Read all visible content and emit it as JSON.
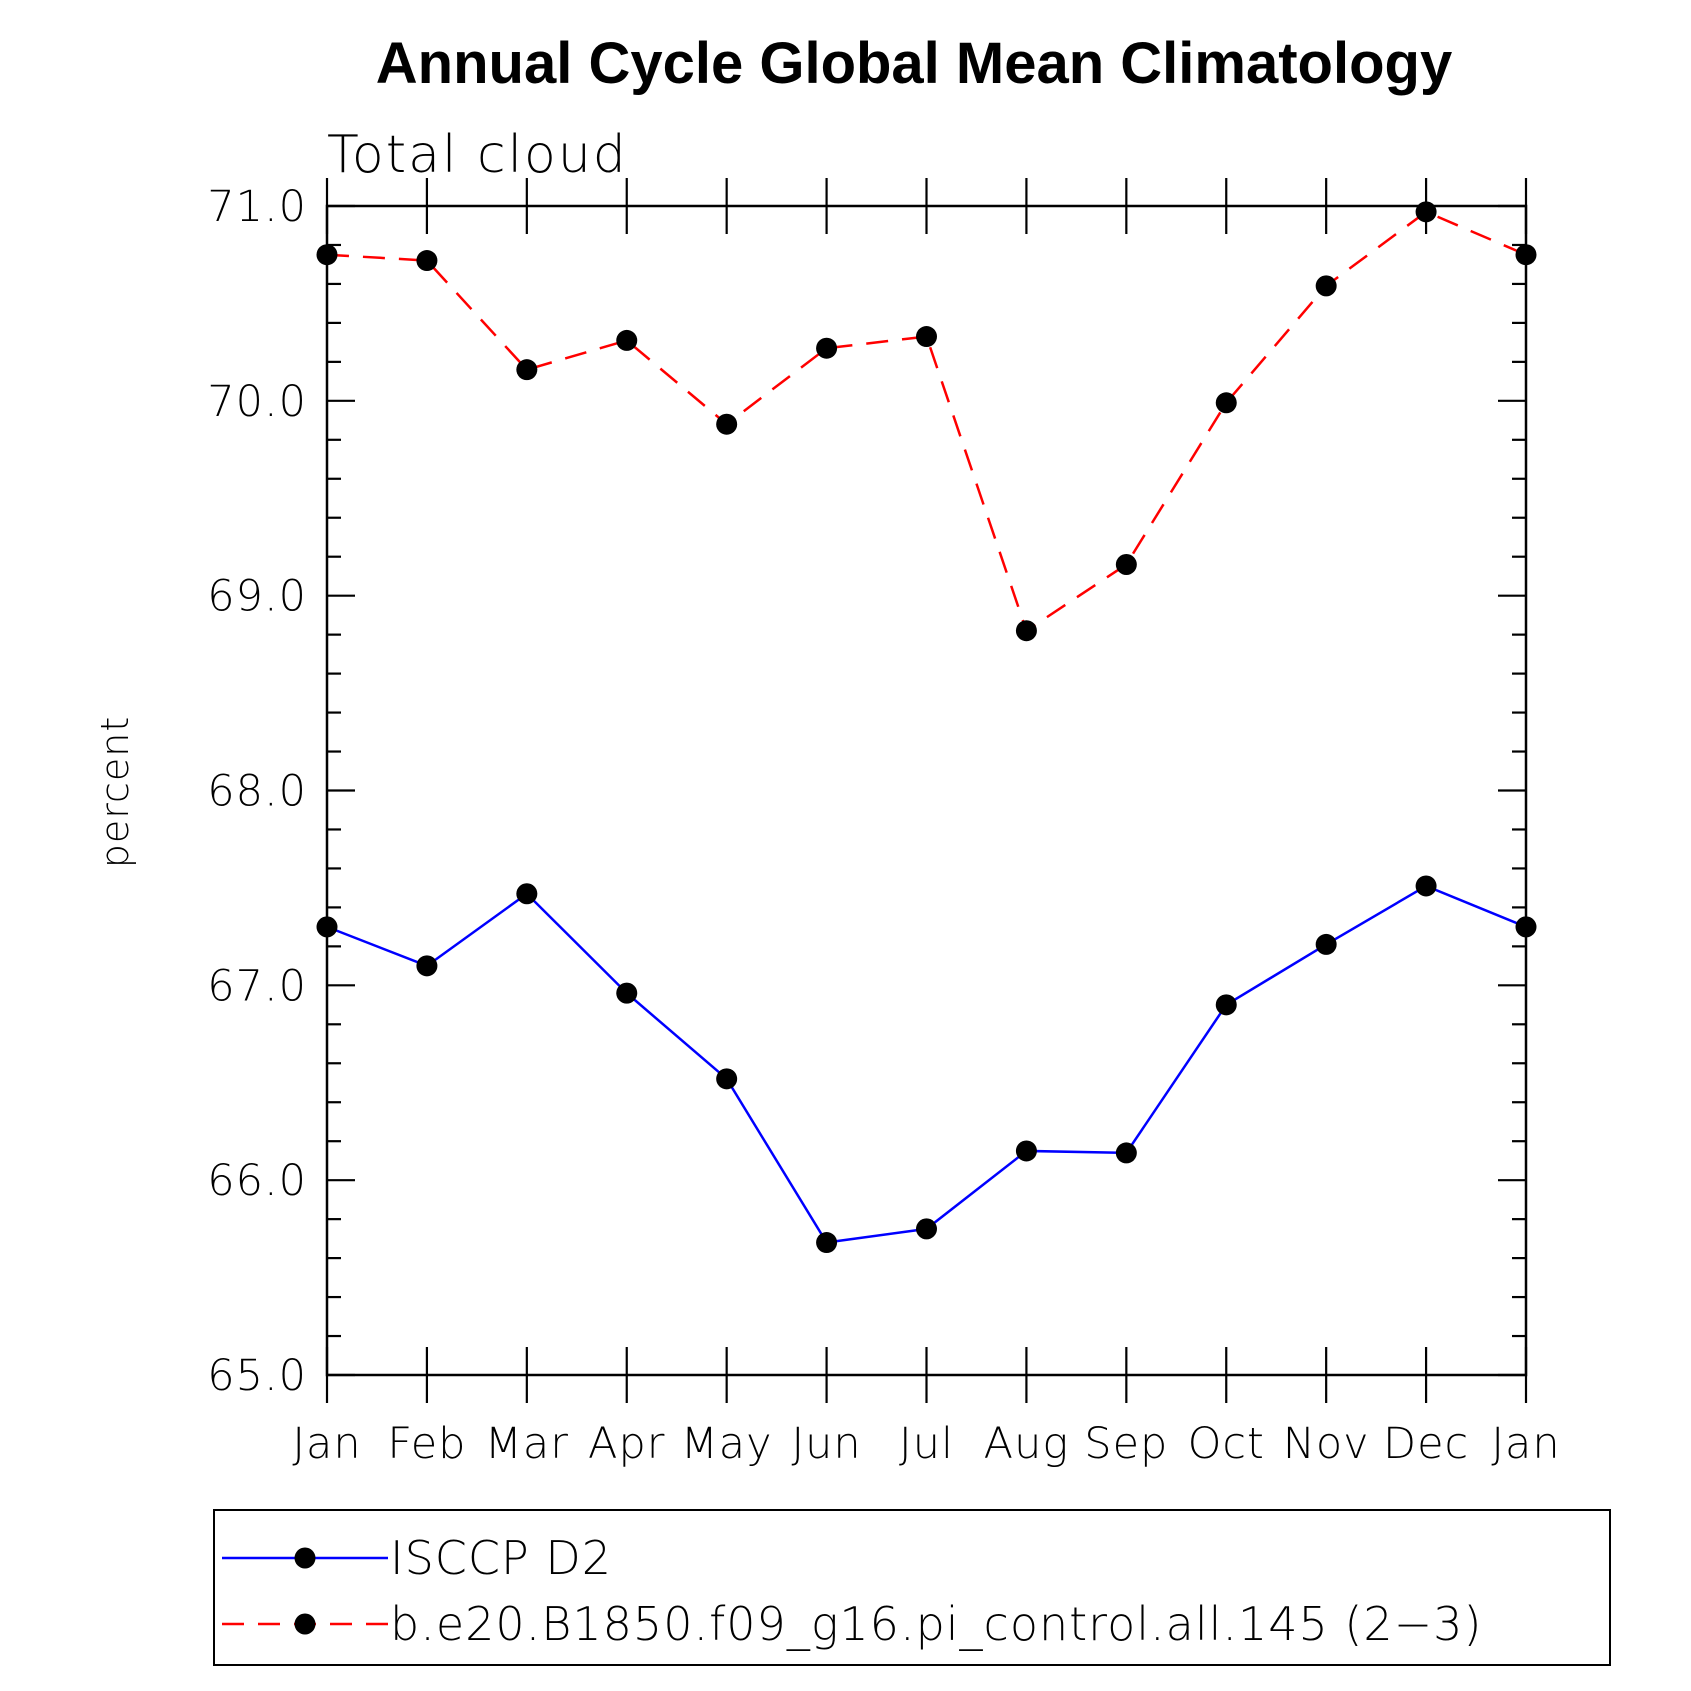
{
  "chart_data": {
    "type": "line",
    "title": "Annual Cycle Global Mean Climatology",
    "subtitle": "Total cloud",
    "ylabel": "percent",
    "xlabel": "",
    "categories": [
      "Jan",
      "Feb",
      "Mar",
      "Apr",
      "May",
      "Jun",
      "Jul",
      "Aug",
      "Sep",
      "Oct",
      "Nov",
      "Dec",
      "Jan"
    ],
    "ylim": [
      65.0,
      71.0
    ],
    "yticks": [
      "65.0",
      "66.0",
      "67.0",
      "68.0",
      "69.0",
      "70.0",
      "71.0"
    ],
    "grid": false,
    "legend_position": "bottom",
    "series": [
      {
        "name": "ISCCP D2",
        "color": "#0000ff",
        "dash": "solid",
        "values": [
          67.3,
          67.1,
          67.47,
          66.96,
          66.52,
          65.68,
          65.75,
          66.15,
          66.14,
          66.9,
          67.21,
          67.51,
          67.3
        ]
      },
      {
        "name": "b.e20.B1850.f09_g16.pi_control.all.145 (2−3)",
        "color": "#ff0000",
        "dash": "dashed",
        "values": [
          70.75,
          70.72,
          70.16,
          70.31,
          69.88,
          70.27,
          70.33,
          68.82,
          69.16,
          69.99,
          70.59,
          70.97,
          70.75
        ]
      }
    ]
  }
}
